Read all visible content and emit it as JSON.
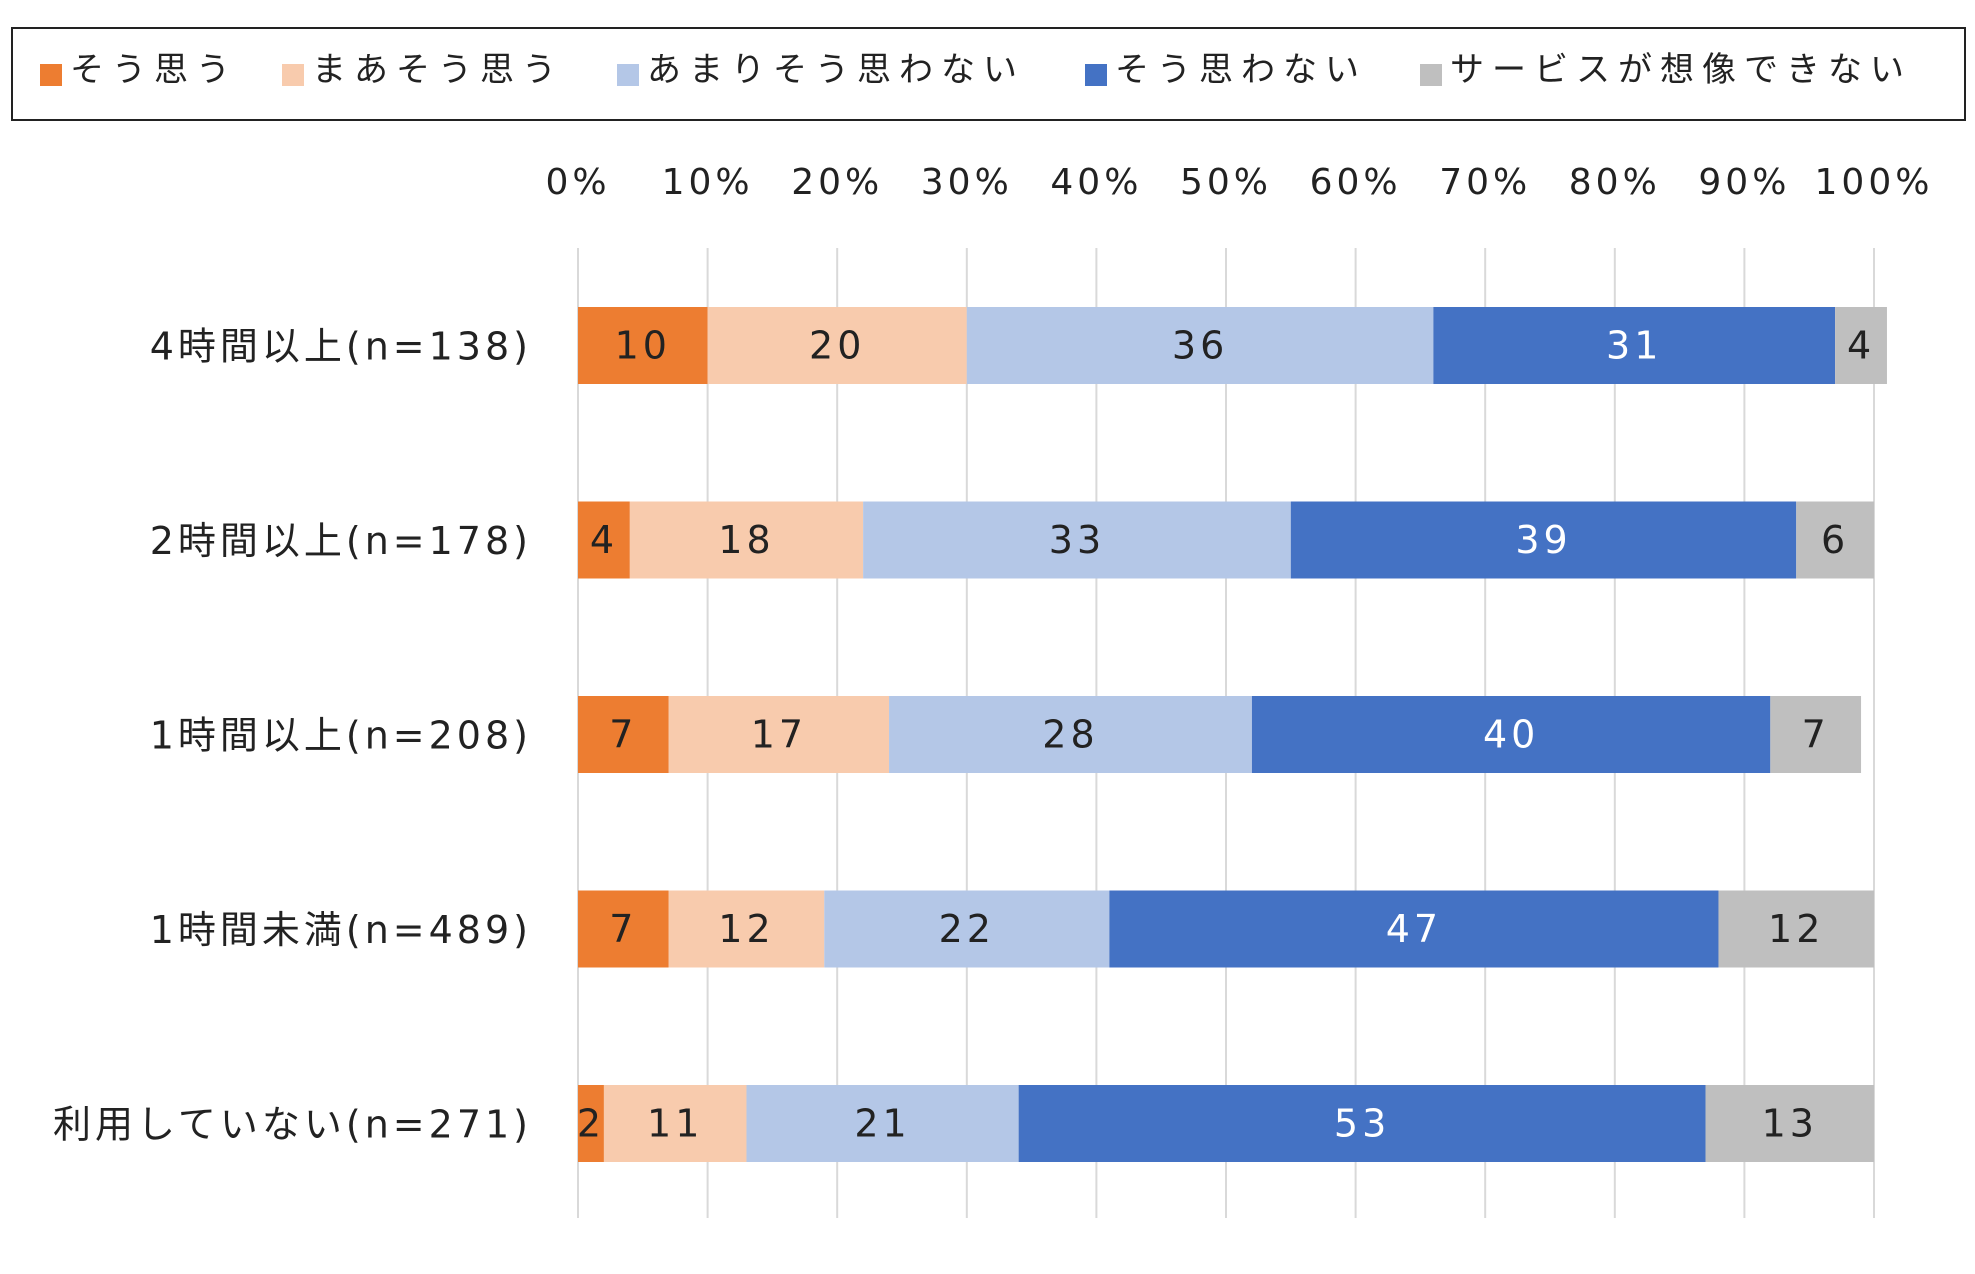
{
  "chart_data": {
    "type": "bar",
    "orientation": "horizontal",
    "stacked": true,
    "title": "",
    "xlabel": "",
    "ylabel": "",
    "xlim": [
      0,
      100
    ],
    "x_ticks": [
      "0%",
      "10%",
      "20%",
      "30%",
      "40%",
      "50%",
      "60%",
      "70%",
      "80%",
      "90%",
      "100%"
    ],
    "grid": true,
    "legend_position": "top",
    "categories": [
      "4時間以上(n=138)",
      "2時間以上(n=178)",
      "1時間以上(n=208)",
      "1時間未満(n=489)",
      "利用していない(n=271)"
    ],
    "series": [
      {
        "name": "そう思う",
        "color": "#ED7D31",
        "label_color": "#222222",
        "values": [
          10,
          4,
          7,
          7,
          2
        ]
      },
      {
        "name": "まあそう思う",
        "color": "#F8CBAD",
        "label_color": "#222222",
        "values": [
          20,
          18,
          17,
          12,
          11
        ]
      },
      {
        "name": "あまりそう思わない",
        "color": "#B4C7E7",
        "label_color": "#222222",
        "values": [
          36,
          33,
          28,
          22,
          21
        ]
      },
      {
        "name": "そう思わない",
        "color": "#4472C4",
        "label_color": "#ffffff",
        "values": [
          31,
          39,
          40,
          47,
          53
        ]
      },
      {
        "name": "サービスが想像できない",
        "color": "#BFBFBF",
        "label_color": "#222222",
        "values": [
          4,
          6,
          7,
          12,
          13
        ]
      }
    ]
  }
}
